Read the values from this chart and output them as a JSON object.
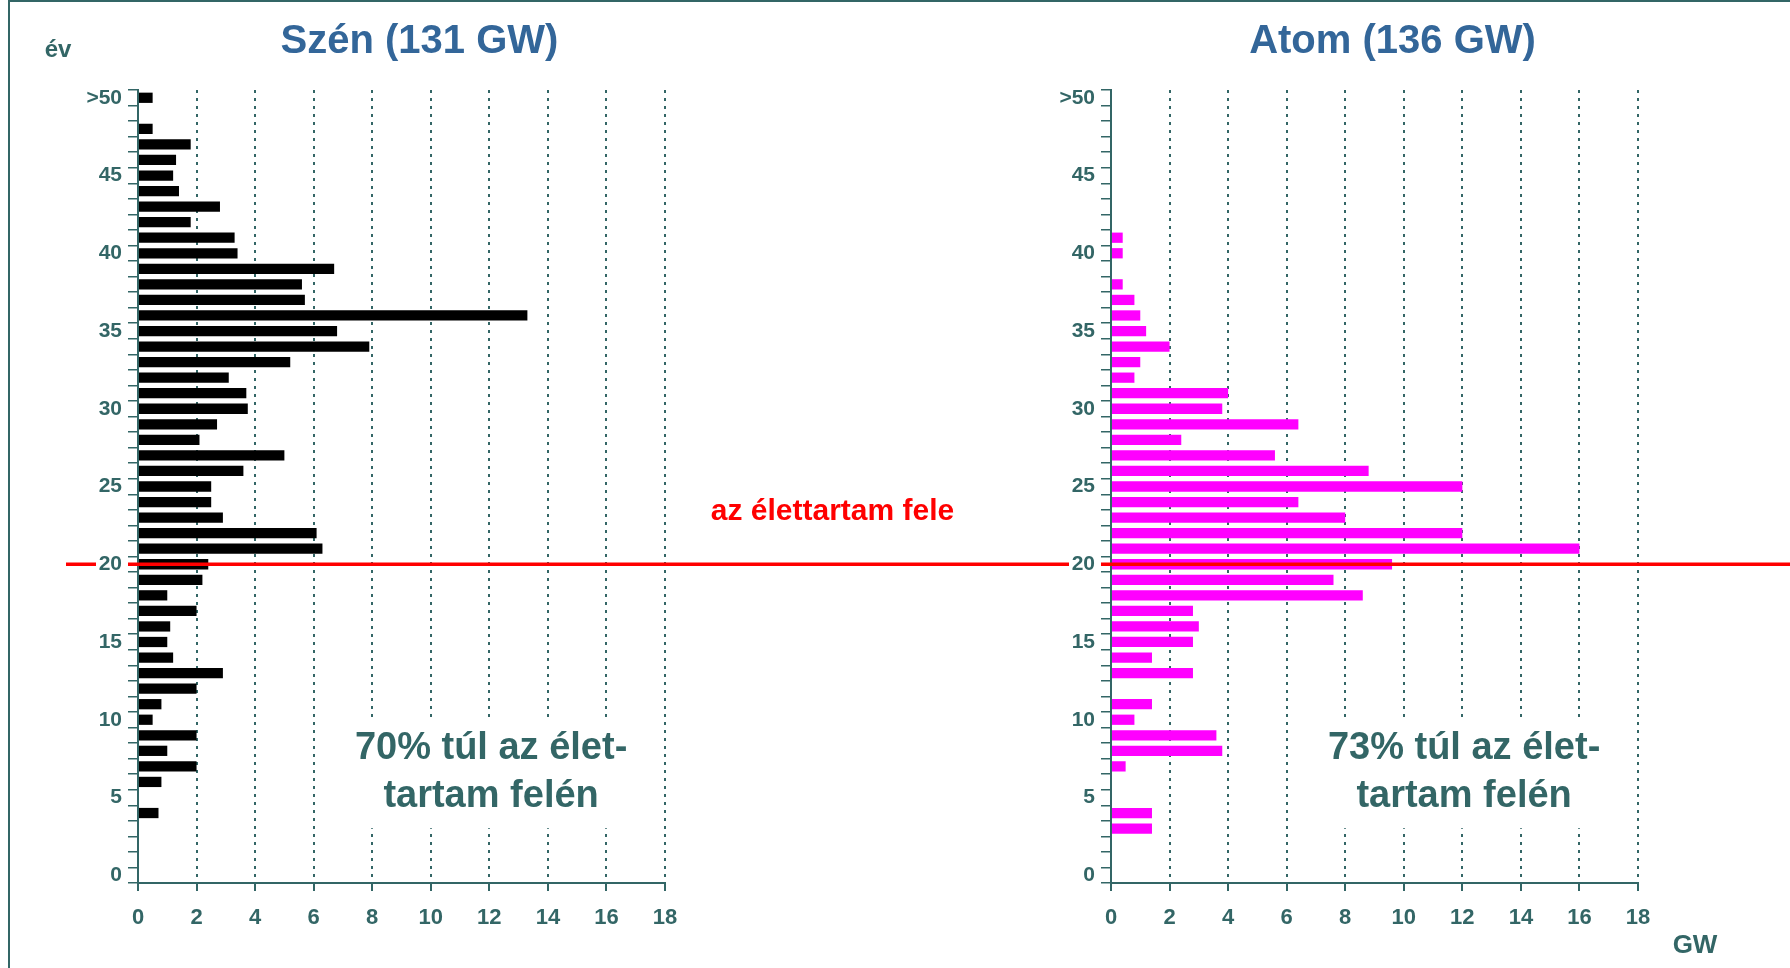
{
  "chart_data": [
    {
      "type": "bar",
      "orientation": "horizontal",
      "title": "Szén (131 GW)",
      "ylabel": "év",
      "categories": [
        ">50",
        null,
        null,
        null,
        null,
        "45",
        null,
        null,
        null,
        null,
        "40",
        null,
        null,
        null,
        null,
        "35",
        null,
        null,
        null,
        null,
        "30",
        null,
        null,
        null,
        null,
        "25",
        null,
        null,
        null,
        null,
        "20",
        null,
        null,
        null,
        null,
        "15",
        null,
        null,
        null,
        null,
        "10",
        null,
        null,
        null,
        null,
        "5",
        null,
        null,
        null,
        null,
        "0"
      ],
      "series": [
        {
          "color": "#000000",
          "values": [
            0.5,
            0,
            0.5,
            1.8,
            1.3,
            1.2,
            1.4,
            2.8,
            1.8,
            3.3,
            3.4,
            6.7,
            5.6,
            5.7,
            13.3,
            6.8,
            7.9,
            5.2,
            3.1,
            3.7,
            3.75,
            2.7,
            2.1,
            5.0,
            3.6,
            2.5,
            2.5,
            2.9,
            6.1,
            6.3,
            2.4,
            2.2,
            1.0,
            2.0,
            1.1,
            1.0,
            1.2,
            2.9,
            2.0,
            0.8,
            0.5,
            2.0,
            1.0,
            2.0,
            0.8,
            0,
            0.7,
            0,
            0,
            0,
            0
          ]
        }
      ],
      "xlim": [
        0,
        18
      ],
      "xticks": [
        0,
        2,
        4,
        6,
        8,
        10,
        12,
        14,
        16,
        18
      ],
      "grid": "x",
      "ref_lines": [
        {
          "axis": "y",
          "value": "20",
          "label": "az élettartam fele",
          "color": "#ff0000"
        }
      ],
      "annotations": [
        "70% túl az élet-\ntartam felén"
      ]
    },
    {
      "type": "bar",
      "orientation": "horizontal",
      "title": "Atom (136 GW)",
      "xlabel": "GW",
      "categories": [
        ">50",
        null,
        null,
        null,
        null,
        "45",
        null,
        null,
        null,
        null,
        "40",
        null,
        null,
        null,
        null,
        "35",
        null,
        null,
        null,
        null,
        "30",
        null,
        null,
        null,
        null,
        "25",
        null,
        null,
        null,
        null,
        "20",
        null,
        null,
        null,
        null,
        "15",
        null,
        null,
        null,
        null,
        "10",
        null,
        null,
        null,
        null,
        "5",
        null,
        null,
        null,
        null,
        "0"
      ],
      "series": [
        {
          "color": "#ff00ff",
          "values": [
            0,
            0,
            0,
            0,
            0,
            0,
            0,
            0,
            0,
            0.4,
            0.4,
            0,
            0.4,
            0.8,
            1.0,
            1.2,
            2.0,
            1.0,
            0.8,
            4.0,
            3.8,
            6.4,
            2.4,
            5.6,
            8.8,
            12.0,
            6.4,
            8.0,
            12.0,
            16.0,
            9.6,
            7.6,
            8.6,
            2.8,
            3.0,
            2.8,
            1.4,
            2.8,
            0,
            1.4,
            0.8,
            3.6,
            3.8,
            0.5,
            0,
            0,
            1.4,
            1.4,
            0,
            0,
            0
          ]
        }
      ],
      "xlim": [
        0,
        18
      ],
      "xticks": [
        0,
        2,
        4,
        6,
        8,
        10,
        12,
        14,
        16,
        18
      ],
      "grid": "x",
      "ref_lines": [
        {
          "axis": "y",
          "value": "20",
          "color": "#ff0000"
        }
      ],
      "annotations": [
        "73% túl az élet-\ntartam felén"
      ]
    }
  ]
}
